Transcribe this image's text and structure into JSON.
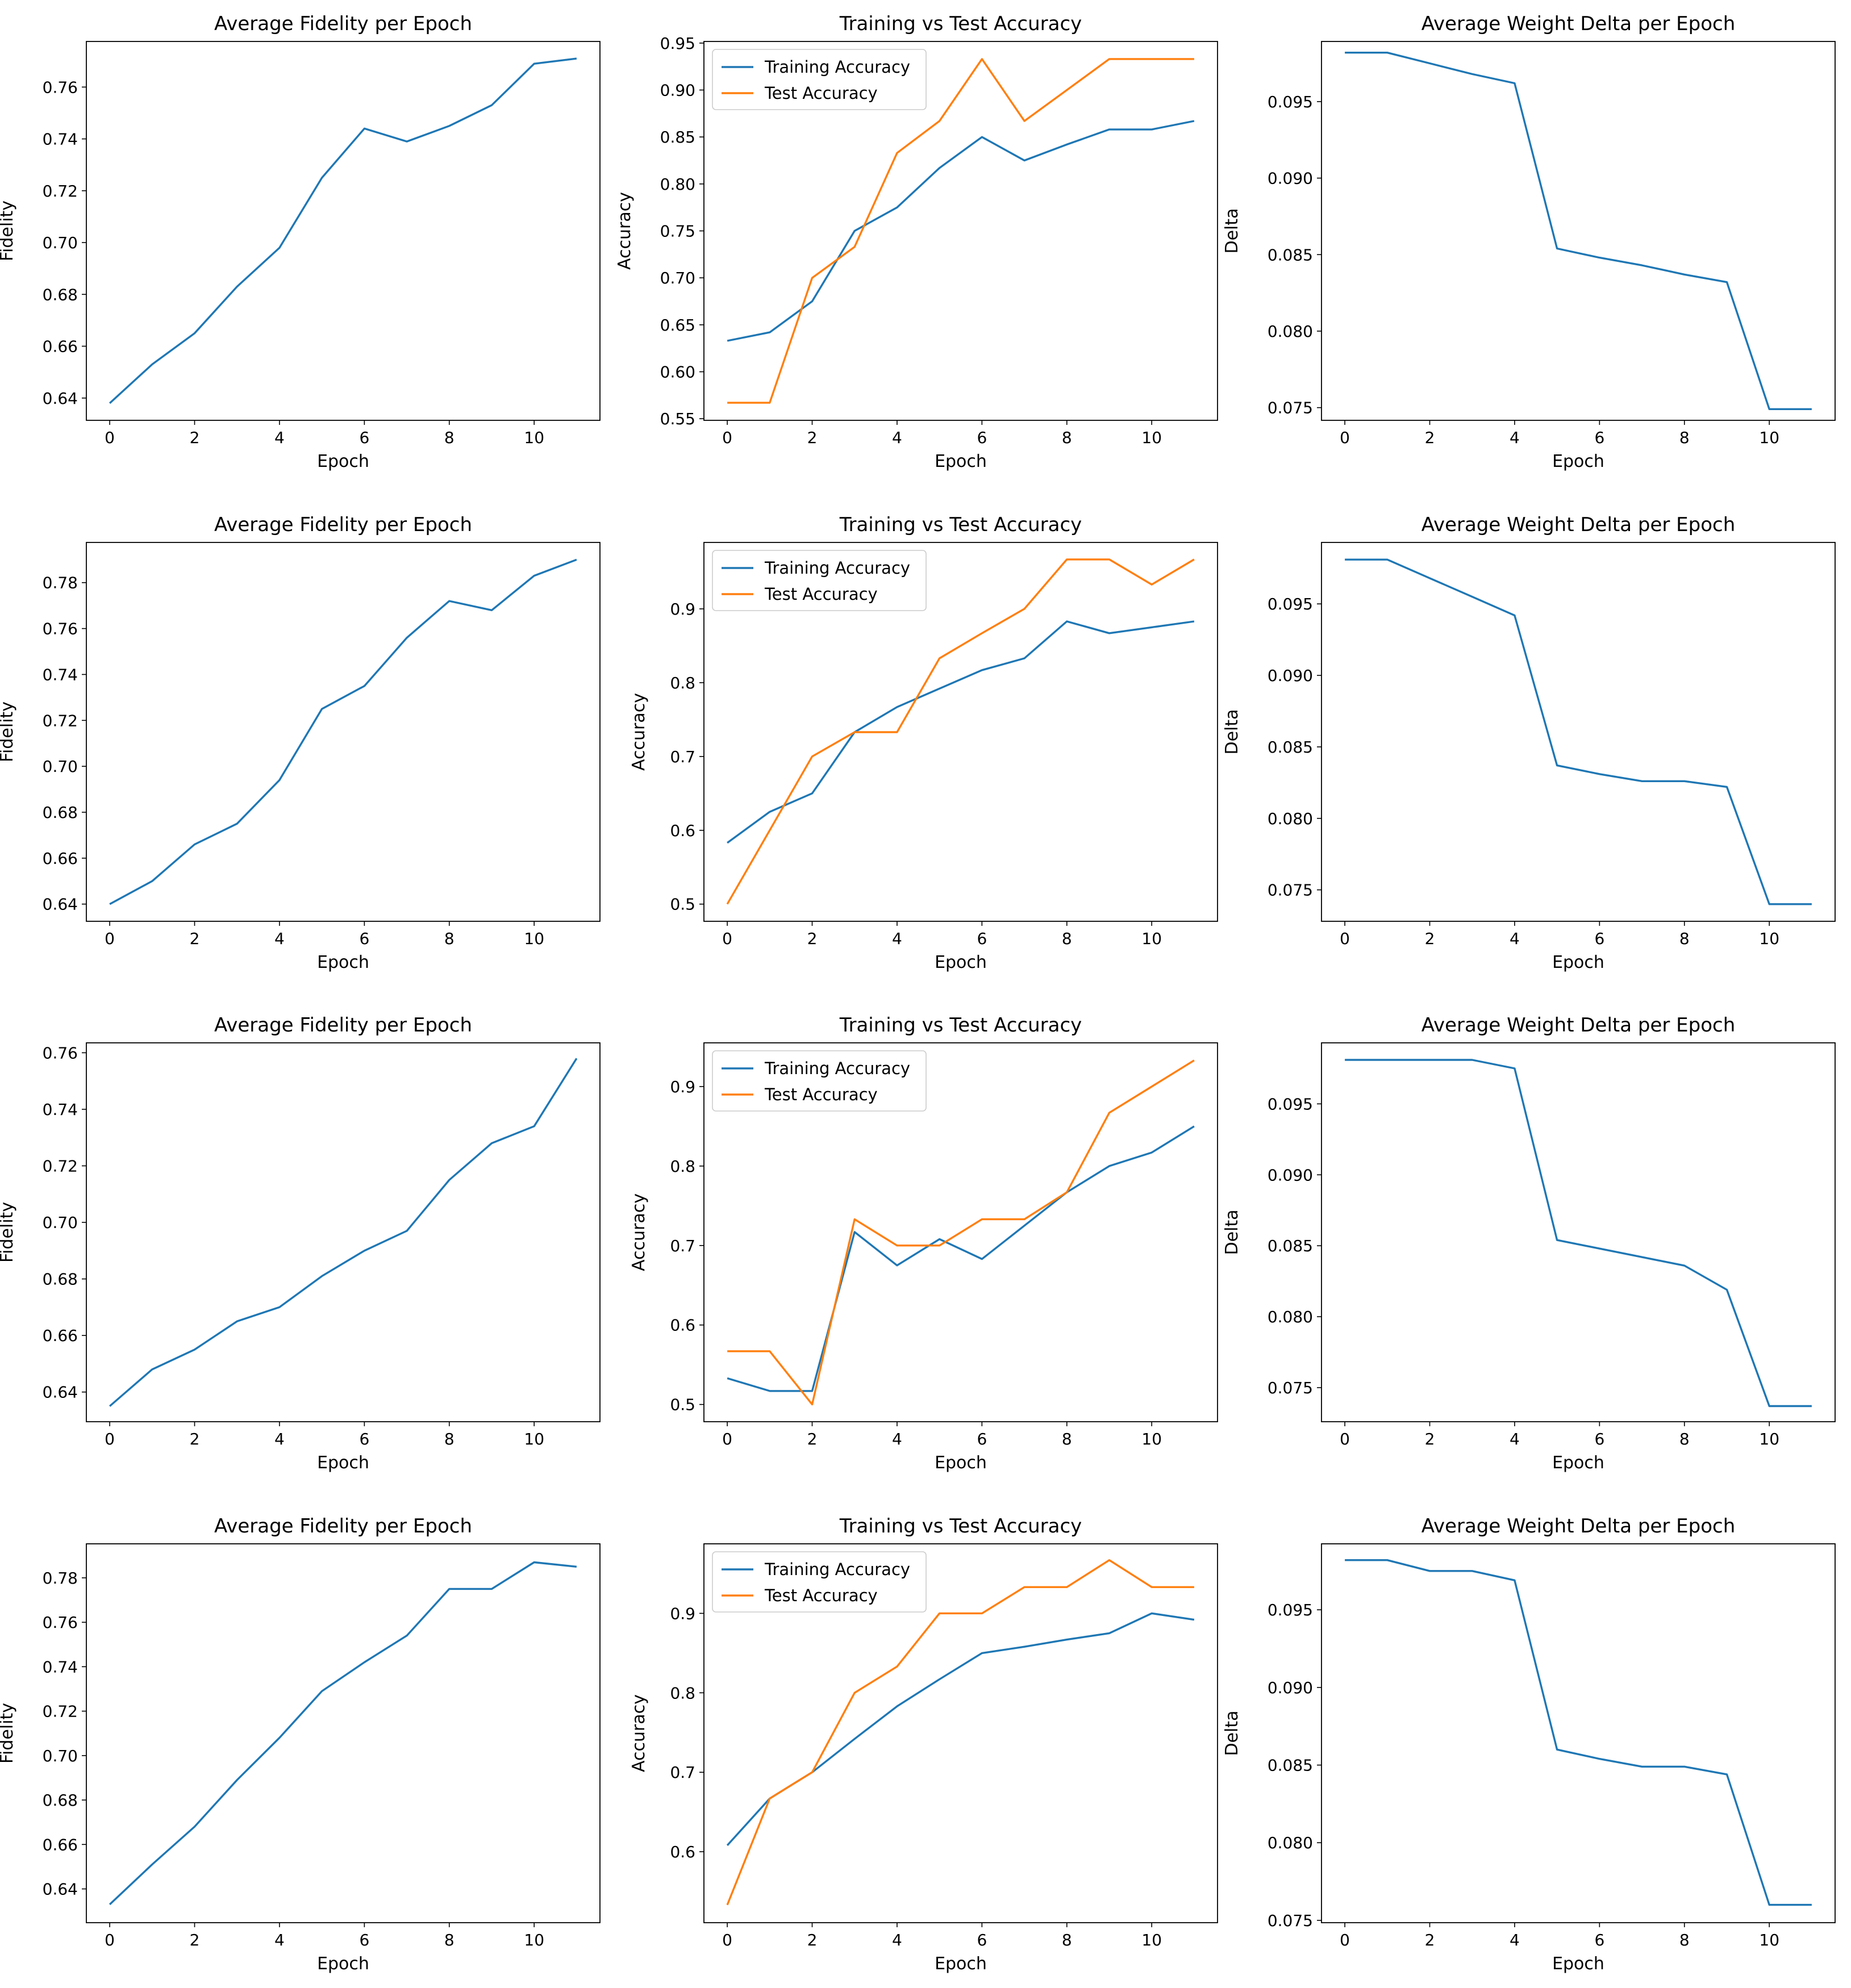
{
  "figure": {
    "colors": {
      "series_blue": "#1f77b4",
      "series_orange": "#ff7f0e",
      "axes": "#000000",
      "legend_border": "#cccccc"
    }
  },
  "chart_data": [
    {
      "type": "line",
      "title": "Average Fidelity per Epoch",
      "xlabel": "Epoch",
      "ylabel": "Fidelity",
      "xlim": [
        -0.55,
        11.55
      ],
      "ylim": [
        0.6314,
        0.7776
      ],
      "xticks": [
        0,
        2,
        4,
        6,
        8,
        10
      ],
      "yticks": [
        0.64,
        0.66,
        0.68,
        0.7,
        0.72,
        0.74,
        0.76
      ],
      "ytick_decimals": 2,
      "x": [
        0,
        1,
        2,
        3,
        4,
        5,
        6,
        7,
        8,
        9,
        10,
        11
      ],
      "series": [
        {
          "name": "Fidelity",
          "color": "#1f77b4",
          "values": [
            0.638,
            0.653,
            0.665,
            0.683,
            0.698,
            0.725,
            0.744,
            0.739,
            0.745,
            0.753,
            0.769,
            0.771
          ]
        }
      ]
    },
    {
      "type": "line",
      "title": "Training vs Test Accuracy",
      "xlabel": "Epoch",
      "ylabel": "Accuracy",
      "xlim": [
        -0.55,
        11.55
      ],
      "ylim": [
        0.5483,
        0.9517
      ],
      "xticks": [
        0,
        2,
        4,
        6,
        8,
        10
      ],
      "yticks": [
        0.55,
        0.6,
        0.65,
        0.7,
        0.75,
        0.8,
        0.85,
        0.9,
        0.95
      ],
      "ytick_decimals": 2,
      "legend": "upper-left",
      "x": [
        0,
        1,
        2,
        3,
        4,
        5,
        6,
        7,
        8,
        9,
        10,
        11
      ],
      "series": [
        {
          "name": "Training Accuracy",
          "color": "#1f77b4",
          "values": [
            0.633,
            0.642,
            0.675,
            0.75,
            0.775,
            0.817,
            0.85,
            0.825,
            0.842,
            0.858,
            0.858,
            0.867
          ]
        },
        {
          "name": "Test Accuracy",
          "color": "#ff7f0e",
          "values": [
            0.567,
            0.567,
            0.7,
            0.733,
            0.833,
            0.867,
            0.933,
            0.867,
            0.9,
            0.933,
            0.933,
            0.933
          ]
        }
      ]
    },
    {
      "type": "line",
      "title": "Average Weight Delta per Epoch",
      "xlabel": "Epoch",
      "ylabel": "Delta",
      "xlim": [
        -0.55,
        11.55
      ],
      "ylim": [
        0.07417,
        0.09893
      ],
      "xticks": [
        0,
        2,
        4,
        6,
        8,
        10
      ],
      "yticks": [
        0.075,
        0.08,
        0.085,
        0.09,
        0.095
      ],
      "ytick_decimals": 3,
      "x": [
        0,
        1,
        2,
        3,
        4,
        5,
        6,
        7,
        8,
        9,
        10,
        11
      ],
      "series": [
        {
          "name": "Delta",
          "color": "#1f77b4",
          "values": [
            0.0982,
            0.0982,
            0.0975,
            0.0968,
            0.0962,
            0.0854,
            0.0848,
            0.0843,
            0.0837,
            0.0832,
            0.0749,
            0.0749
          ]
        }
      ]
    },
    {
      "type": "line",
      "title": "Average Fidelity per Epoch",
      "xlabel": "Epoch",
      "ylabel": "Fidelity",
      "xlim": [
        -0.55,
        11.55
      ],
      "ylim": [
        0.6325,
        0.7975
      ],
      "xticks": [
        0,
        2,
        4,
        6,
        8,
        10
      ],
      "yticks": [
        0.64,
        0.66,
        0.68,
        0.7,
        0.72,
        0.74,
        0.76,
        0.78
      ],
      "ytick_decimals": 2,
      "x": [
        0,
        1,
        2,
        3,
        4,
        5,
        6,
        7,
        8,
        9,
        10,
        11
      ],
      "series": [
        {
          "name": "Fidelity",
          "color": "#1f77b4",
          "values": [
            0.64,
            0.65,
            0.666,
            0.675,
            0.694,
            0.725,
            0.735,
            0.756,
            0.772,
            0.768,
            0.783,
            0.79
          ]
        }
      ]
    },
    {
      "type": "line",
      "title": "Training vs Test Accuracy",
      "xlabel": "Epoch",
      "ylabel": "Accuracy",
      "xlim": [
        -0.55,
        11.55
      ],
      "ylim": [
        0.4767,
        0.99
      ],
      "xticks": [
        0,
        2,
        4,
        6,
        8,
        10
      ],
      "yticks": [
        0.5,
        0.6,
        0.7,
        0.8,
        0.9
      ],
      "ytick_decimals": 1,
      "legend": "upper-left",
      "x": [
        0,
        1,
        2,
        3,
        4,
        5,
        6,
        7,
        8,
        9,
        10,
        11
      ],
      "series": [
        {
          "name": "Training Accuracy",
          "color": "#1f77b4",
          "values": [
            0.583,
            0.625,
            0.65,
            0.733,
            0.767,
            0.792,
            0.817,
            0.833,
            0.883,
            0.867,
            0.875,
            0.883
          ]
        },
        {
          "name": "Test Accuracy",
          "color": "#ff7f0e",
          "values": [
            0.5,
            0.6,
            0.7,
            0.733,
            0.733,
            0.833,
            0.867,
            0.9,
            0.967,
            0.967,
            0.933,
            0.967
          ]
        }
      ]
    },
    {
      "type": "line",
      "title": "Average Weight Delta per Epoch",
      "xlabel": "Epoch",
      "ylabel": "Delta",
      "xlim": [
        -0.55,
        11.55
      ],
      "ylim": [
        0.0728,
        0.0993
      ],
      "xticks": [
        0,
        2,
        4,
        6,
        8,
        10
      ],
      "yticks": [
        0.075,
        0.08,
        0.085,
        0.09,
        0.095
      ],
      "ytick_decimals": 3,
      "x": [
        0,
        1,
        2,
        3,
        4,
        5,
        6,
        7,
        8,
        9,
        10,
        11
      ],
      "series": [
        {
          "name": "Delta",
          "color": "#1f77b4",
          "values": [
            0.0981,
            0.0981,
            0.0968,
            0.0955,
            0.0942,
            0.0837,
            0.0831,
            0.0826,
            0.0826,
            0.0822,
            0.074,
            0.074
          ]
        }
      ]
    },
    {
      "type": "line",
      "title": "Average Fidelity per Epoch",
      "xlabel": "Epoch",
      "ylabel": "Fidelity",
      "xlim": [
        -0.55,
        11.55
      ],
      "ylim": [
        0.6295,
        0.7635
      ],
      "xticks": [
        0,
        2,
        4,
        6,
        8,
        10
      ],
      "yticks": [
        0.64,
        0.66,
        0.68,
        0.7,
        0.72,
        0.74,
        0.76
      ],
      "ytick_decimals": 2,
      "x": [
        0,
        1,
        2,
        3,
        4,
        5,
        6,
        7,
        8,
        9,
        10,
        11
      ],
      "series": [
        {
          "name": "Fidelity",
          "color": "#1f77b4",
          "values": [
            0.635,
            0.648,
            0.655,
            0.665,
            0.67,
            0.681,
            0.69,
            0.697,
            0.715,
            0.728,
            0.734,
            0.758
          ]
        }
      ]
    },
    {
      "type": "line",
      "title": "Training vs Test Accuracy",
      "xlabel": "Epoch",
      "ylabel": "Accuracy",
      "xlim": [
        -0.55,
        11.55
      ],
      "ylim": [
        0.4783,
        0.955
      ],
      "xticks": [
        0,
        2,
        4,
        6,
        8,
        10
      ],
      "yticks": [
        0.5,
        0.6,
        0.7,
        0.8,
        0.9
      ],
      "ytick_decimals": 1,
      "legend": "upper-left",
      "x": [
        0,
        1,
        2,
        3,
        4,
        5,
        6,
        7,
        8,
        9,
        10,
        11
      ],
      "series": [
        {
          "name": "Training Accuracy",
          "color": "#1f77b4",
          "values": [
            0.533,
            0.517,
            0.517,
            0.717,
            0.675,
            0.708,
            0.683,
            0.725,
            0.767,
            0.8,
            0.817,
            0.85
          ]
        },
        {
          "name": "Test Accuracy",
          "color": "#ff7f0e",
          "values": [
            0.567,
            0.567,
            0.5,
            0.733,
            0.7,
            0.7,
            0.733,
            0.733,
            0.767,
            0.867,
            0.9,
            0.933
          ]
        }
      ]
    },
    {
      "type": "line",
      "title": "Average Weight Delta per Epoch",
      "xlabel": "Epoch",
      "ylabel": "Delta",
      "xlim": [
        -0.55,
        11.55
      ],
      "ylim": [
        0.0726,
        0.0993
      ],
      "xticks": [
        0,
        2,
        4,
        6,
        8,
        10
      ],
      "yticks": [
        0.075,
        0.08,
        0.085,
        0.09,
        0.095
      ],
      "ytick_decimals": 3,
      "x": [
        0,
        1,
        2,
        3,
        4,
        5,
        6,
        7,
        8,
        9,
        10,
        11
      ],
      "series": [
        {
          "name": "Delta",
          "color": "#1f77b4",
          "values": [
            0.0981,
            0.0981,
            0.0981,
            0.0981,
            0.0975,
            0.0854,
            0.0848,
            0.0842,
            0.0836,
            0.0819,
            0.0737,
            0.0737
          ]
        }
      ]
    },
    {
      "type": "line",
      "title": "Average Fidelity per Epoch",
      "xlabel": "Epoch",
      "ylabel": "Fidelity",
      "xlim": [
        -0.55,
        11.55
      ],
      "ylim": [
        0.6248,
        0.7953
      ],
      "xticks": [
        0,
        2,
        4,
        6,
        8,
        10
      ],
      "yticks": [
        0.64,
        0.66,
        0.68,
        0.7,
        0.72,
        0.74,
        0.76,
        0.78
      ],
      "ytick_decimals": 2,
      "x": [
        0,
        1,
        2,
        3,
        4,
        5,
        6,
        7,
        8,
        9,
        10,
        11
      ],
      "series": [
        {
          "name": "Fidelity",
          "color": "#1f77b4",
          "values": [
            0.633,
            0.651,
            0.668,
            0.689,
            0.708,
            0.729,
            0.742,
            0.754,
            0.775,
            0.775,
            0.787,
            0.785
          ]
        }
      ]
    },
    {
      "type": "line",
      "title": "Training vs Test Accuracy",
      "xlabel": "Epoch",
      "ylabel": "Accuracy",
      "xlim": [
        -0.55,
        11.55
      ],
      "ylim": [
        0.5107,
        0.9875
      ],
      "xticks": [
        0,
        2,
        4,
        6,
        8,
        10
      ],
      "yticks": [
        0.6,
        0.7,
        0.8,
        0.9
      ],
      "ytick_decimals": 1,
      "legend": "upper-left",
      "x": [
        0,
        1,
        2,
        3,
        4,
        5,
        6,
        7,
        8,
        9,
        10,
        11
      ],
      "series": [
        {
          "name": "Training Accuracy",
          "color": "#1f77b4",
          "values": [
            0.608,
            0.667,
            0.7,
            0.742,
            0.783,
            0.817,
            0.85,
            0.858,
            0.867,
            0.875,
            0.9,
            0.892
          ]
        },
        {
          "name": "Test Accuracy",
          "color": "#ff7f0e",
          "values": [
            0.533,
            0.667,
            0.7,
            0.8,
            0.833,
            0.9,
            0.9,
            0.933,
            0.933,
            0.967,
            0.933,
            0.933
          ]
        }
      ]
    },
    {
      "type": "line",
      "title": "Average Weight Delta per Epoch",
      "xlabel": "Epoch",
      "ylabel": "Delta",
      "xlim": [
        -0.55,
        11.55
      ],
      "ylim": [
        0.07485,
        0.09925
      ],
      "xticks": [
        0,
        2,
        4,
        6,
        8,
        10
      ],
      "yticks": [
        0.075,
        0.08,
        0.085,
        0.09,
        0.095
      ],
      "ytick_decimals": 3,
      "x": [
        0,
        1,
        2,
        3,
        4,
        5,
        6,
        7,
        8,
        9,
        10,
        11
      ],
      "series": [
        {
          "name": "Delta",
          "color": "#1f77b4",
          "values": [
            0.0982,
            0.0982,
            0.0975,
            0.0975,
            0.0969,
            0.086,
            0.0854,
            0.0849,
            0.0849,
            0.0844,
            0.076,
            0.076
          ]
        }
      ]
    }
  ]
}
